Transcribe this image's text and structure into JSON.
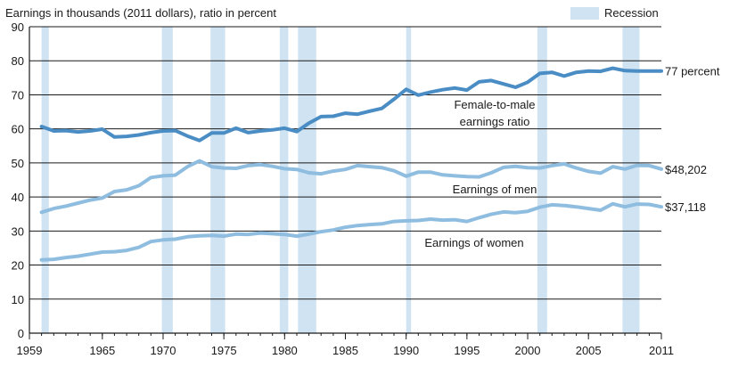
{
  "chart_data": {
    "type": "line",
    "title": "Earnings in thousands (2011 dollars), ratio in percent",
    "xlim": [
      1959,
      2011
    ],
    "ylim": [
      0,
      90
    ],
    "x_ticks": [
      "1959",
      "1965",
      "1970",
      "1975",
      "1980",
      "1985",
      "1990",
      "1995",
      "2000",
      "2005",
      "2011"
    ],
    "y_ticks": [
      "0",
      "10",
      "20",
      "30",
      "40",
      "50",
      "60",
      "70",
      "80",
      "90"
    ],
    "grid": "horizontal",
    "legend": {
      "label": "Recession",
      "position": "top-right",
      "color": "#cfe3f2"
    },
    "recessions": [
      [
        1960.0,
        1960.6
      ],
      [
        1969.9,
        1970.8
      ],
      [
        1973.9,
        1975.1
      ],
      [
        1979.6,
        1980.3
      ],
      [
        1981.1,
        1982.6
      ],
      [
        1990.0,
        1990.4
      ],
      [
        2000.8,
        2001.6
      ],
      [
        2007.8,
        2009.2
      ]
    ],
    "x": [
      1960,
      1961,
      1962,
      1963,
      1964,
      1965,
      1966,
      1967,
      1968,
      1969,
      1970,
      1971,
      1972,
      1973,
      1974,
      1975,
      1976,
      1977,
      1978,
      1979,
      1980,
      1981,
      1982,
      1983,
      1984,
      1985,
      1986,
      1987,
      1988,
      1989,
      1990,
      1991,
      1992,
      1993,
      1994,
      1995,
      1996,
      1997,
      1998,
      1999,
      2000,
      2001,
      2002,
      2003,
      2004,
      2005,
      2006,
      2007,
      2008,
      2009,
      2010,
      2011
    ],
    "series": [
      {
        "name": "Female-to-male earnings ratio",
        "end_label": "77 percent",
        "color": "#4a8cc4",
        "values": [
          60.7,
          59.4,
          59.5,
          59.1,
          59.4,
          59.9,
          57.6,
          57.8,
          58.2,
          58.9,
          59.4,
          59.5,
          57.9,
          56.6,
          58.8,
          58.8,
          60.2,
          58.9,
          59.4,
          59.7,
          60.2,
          59.2,
          61.7,
          63.6,
          63.7,
          64.6,
          64.3,
          65.2,
          66.0,
          68.7,
          71.6,
          69.9,
          70.8,
          71.5,
          72.0,
          71.4,
          73.8,
          74.2,
          73.2,
          72.2,
          73.7,
          76.3,
          76.6,
          75.5,
          76.6,
          77.0,
          76.9,
          77.8,
          77.1,
          77.0,
          77.0,
          77.0
        ]
      },
      {
        "name": "Earnings of men",
        "end_label": "$48,202",
        "color": "#8fbde0",
        "values": [
          35.5,
          36.6,
          37.3,
          38.2,
          39.1,
          39.7,
          41.6,
          42.1,
          43.3,
          45.7,
          46.2,
          46.4,
          48.9,
          50.6,
          48.9,
          48.5,
          48.4,
          49.2,
          49.5,
          49.0,
          48.3,
          48.1,
          47.1,
          46.8,
          47.6,
          48.1,
          49.2,
          48.9,
          48.6,
          47.7,
          46.1,
          47.3,
          47.3,
          46.5,
          46.2,
          46.0,
          45.9,
          47.1,
          48.7,
          49.0,
          48.6,
          48.5,
          49.2,
          49.7,
          48.5,
          47.5,
          47.0,
          48.9,
          48.2,
          49.3,
          49.2,
          48.2
        ]
      },
      {
        "name": "Earnings of women",
        "end_label": "$37,118",
        "color": "#8fbde0",
        "values": [
          21.5,
          21.7,
          22.2,
          22.6,
          23.2,
          23.8,
          23.9,
          24.3,
          25.2,
          26.9,
          27.4,
          27.6,
          28.3,
          28.6,
          28.7,
          28.5,
          29.1,
          29.0,
          29.4,
          29.2,
          29.0,
          28.5,
          29.1,
          29.8,
          30.3,
          31.1,
          31.6,
          31.9,
          32.1,
          32.8,
          33.0,
          33.1,
          33.5,
          33.2,
          33.3,
          32.8,
          33.9,
          34.9,
          35.6,
          35.4,
          35.8,
          37.0,
          37.7,
          37.5,
          37.1,
          36.6,
          36.1,
          38.0,
          37.1,
          37.9,
          37.8,
          37.1
        ]
      }
    ],
    "annotations": [
      {
        "text": "Female-to-male",
        "for": "ratio"
      },
      {
        "text": "earnings ratio",
        "for": "ratio"
      },
      {
        "text": "Earnings of men",
        "for": "men"
      },
      {
        "text": "Earnings of women",
        "for": "women"
      }
    ]
  }
}
